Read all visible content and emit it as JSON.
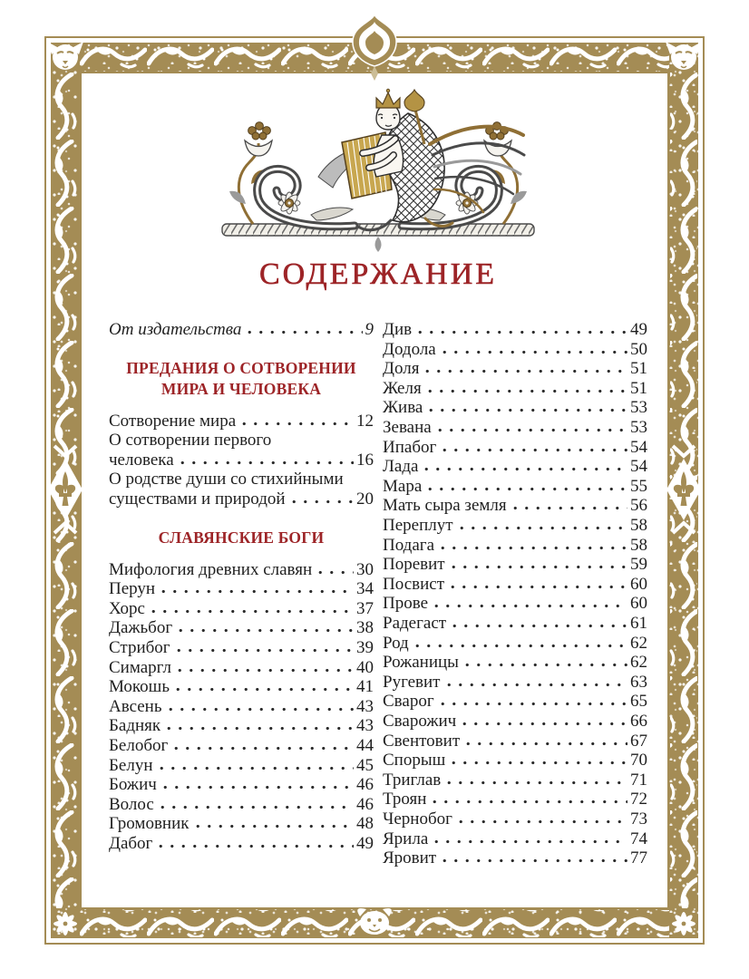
{
  "page": {
    "title": "СОДЕРЖАНИЕ"
  },
  "colors": {
    "accent_red": "#9d2427",
    "border_gold": "#a48c55",
    "text": "#1f1f1f"
  },
  "icons": {
    "headpiece": "sirin-headpiece-art",
    "corners_top": "cat-face-ornament",
    "corners_bottom": "rosette-flower-ornament",
    "sides": "fleur-de-lis-diamond-ornament",
    "top_center": "spade-finial-ornament",
    "bottom_center": "mask-face-ornament"
  },
  "toc": {
    "left": [
      {
        "label": "От издательства",
        "page": "9",
        "italic": true
      },
      {
        "heading": [
          "ПРЕДАНИЯ О СОТВОРЕНИИ",
          "МИРА И ЧЕЛОВЕКА"
        ]
      },
      {
        "label": "Сотворение мира",
        "page": "12"
      },
      {
        "pre": [
          "О сотворении первого"
        ],
        "label": "человека",
        "page": "16"
      },
      {
        "pre": [
          "О родстве души со стихийными"
        ],
        "label": "существами и природой",
        "page": "20"
      },
      {
        "heading": [
          "СЛАВЯНСКИЕ БОГИ"
        ]
      },
      {
        "label": "Мифология древних славян",
        "page": "30"
      },
      {
        "label": "Перун",
        "page": "34"
      },
      {
        "label": "Хорс",
        "page": "37"
      },
      {
        "label": "Дажьбог",
        "page": "38"
      },
      {
        "label": "Стрибог",
        "page": "39"
      },
      {
        "label": "Симаргл",
        "page": "40"
      },
      {
        "label": "Мокошь",
        "page": "41"
      },
      {
        "label": "Авсень",
        "page": "43"
      },
      {
        "label": "Бадняк",
        "page": "43"
      },
      {
        "label": "Белобог",
        "page": "44"
      },
      {
        "label": "Белун",
        "page": "45"
      },
      {
        "label": "Божич",
        "page": "46"
      },
      {
        "label": "Волос",
        "page": "46"
      },
      {
        "label": "Громовник",
        "page": "48"
      },
      {
        "label": "Дабог",
        "page": "49"
      }
    ],
    "right": [
      {
        "label": "Див",
        "page": "49"
      },
      {
        "label": "Додола",
        "page": "50"
      },
      {
        "label": "Доля",
        "page": "51"
      },
      {
        "label": "Желя",
        "page": "51"
      },
      {
        "label": "Жива",
        "page": "53"
      },
      {
        "label": "Зевана",
        "page": "53"
      },
      {
        "label": "Ипабог",
        "page": "54"
      },
      {
        "label": "Лада",
        "page": "54"
      },
      {
        "label": "Мара",
        "page": "55"
      },
      {
        "label": "Мать сыра земля",
        "page": "56"
      },
      {
        "label": "Переплут",
        "page": "58"
      },
      {
        "label": "Подага",
        "page": "58"
      },
      {
        "label": "Поревит",
        "page": "59"
      },
      {
        "label": "Посвист",
        "page": "60"
      },
      {
        "label": "Прове",
        "page": "60"
      },
      {
        "label": "Радегаст",
        "page": "61"
      },
      {
        "label": "Род",
        "page": "62"
      },
      {
        "label": "Рожаницы",
        "page": "62"
      },
      {
        "label": "Ругевит",
        "page": "63"
      },
      {
        "label": "Сварог",
        "page": "65"
      },
      {
        "label": "Сварожич",
        "page": "66"
      },
      {
        "label": "Свентовит",
        "page": "67"
      },
      {
        "label": "Спорыш",
        "page": "70"
      },
      {
        "label": "Триглав",
        "page": "71"
      },
      {
        "label": "Троян",
        "page": "72"
      },
      {
        "label": "Чернобог",
        "page": "73"
      },
      {
        "label": "Ярила",
        "page": "74"
      },
      {
        "label": "Яровит",
        "page": "77"
      }
    ]
  }
}
